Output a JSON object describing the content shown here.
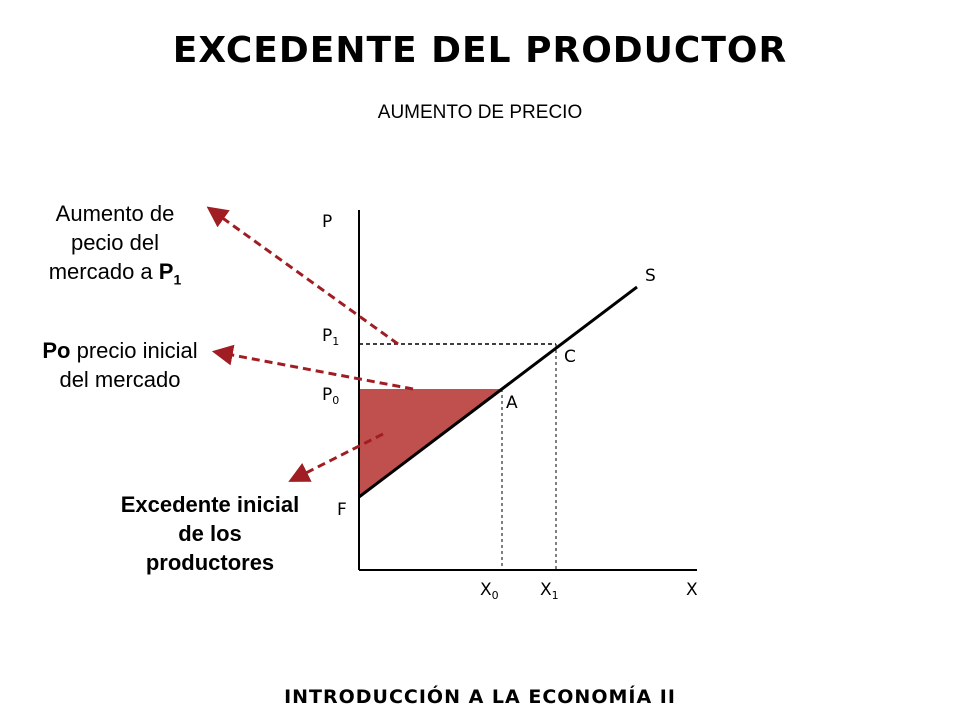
{
  "slide": {
    "title": "EXCEDENTE DEL PRODUCTOR",
    "subtitle": "AUMENTO  DE PRECIO",
    "footer": "INTRODUCCIÓN A LA ECONOMÍA II"
  },
  "notes": {
    "price_rise": {
      "text": "Aumento de pecio del mercado a ",
      "highlight": "P",
      "highlight_sub": "1"
    },
    "initial_price": {
      "highlight": "Po",
      "text": " precio inicial del mercado"
    },
    "initial_surplus": {
      "text": "Excedente inicial de los productores"
    }
  },
  "diagram": {
    "axis_labels": {
      "y": "P",
      "x": "X"
    },
    "curve_label": "S",
    "point_labels": {
      "a": "A",
      "c": "C",
      "f": "F"
    },
    "price_labels": {
      "p1_main": "P",
      "p1_sub": "1",
      "p0_main": "P",
      "p0_sub": "0"
    },
    "quantity_labels": {
      "x0_main": "X",
      "x0_sub": "0",
      "x1_main": "X",
      "x1_sub": "1"
    },
    "colors": {
      "surplus_fill": "#c0504d",
      "arrow": "#a01e23",
      "line": "#000000"
    }
  }
}
